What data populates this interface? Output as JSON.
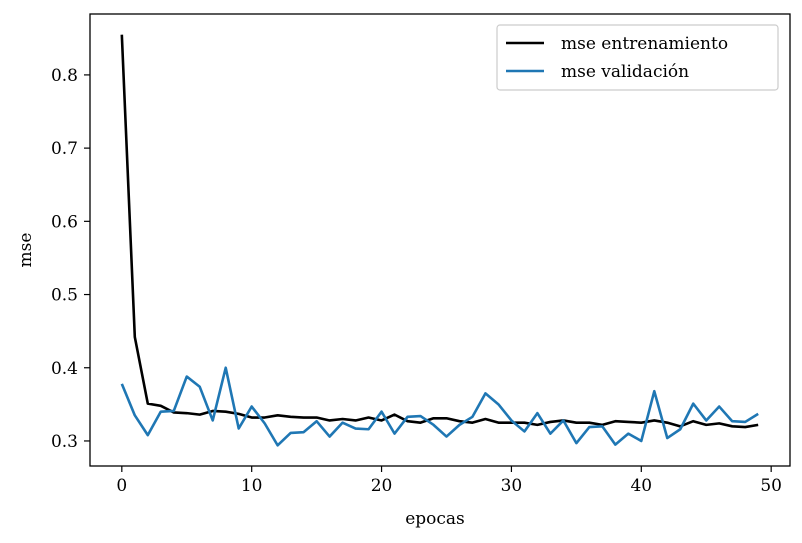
{
  "chart_data": {
    "type": "line",
    "title": "",
    "xlabel": "epocas",
    "ylabel": "mse",
    "xlim": [
      -2.45,
      51.45
    ],
    "ylim": [
      0.2658,
      0.8832
    ],
    "xticks": [
      0,
      10,
      20,
      30,
      40,
      50
    ],
    "yticks": [
      0.3,
      0.4,
      0.5,
      0.6,
      0.7,
      0.8
    ],
    "grid": false,
    "legend_position": "top-right",
    "series": [
      {
        "name": "mse entrenamiento",
        "color": "#000000",
        "x": [
          0,
          1,
          2,
          3,
          4,
          5,
          6,
          7,
          8,
          9,
          10,
          11,
          12,
          13,
          14,
          15,
          16,
          17,
          18,
          19,
          20,
          21,
          22,
          23,
          24,
          25,
          26,
          27,
          28,
          29,
          30,
          31,
          32,
          33,
          34,
          35,
          36,
          37,
          38,
          39,
          40,
          41,
          42,
          43,
          44,
          45,
          46,
          47,
          48,
          49
        ],
        "y": [
          0.855,
          0.442,
          0.351,
          0.348,
          0.339,
          0.338,
          0.336,
          0.341,
          0.34,
          0.337,
          0.332,
          0.332,
          0.335,
          0.333,
          0.332,
          0.332,
          0.328,
          0.33,
          0.328,
          0.332,
          0.328,
          0.336,
          0.327,
          0.325,
          0.331,
          0.331,
          0.327,
          0.325,
          0.33,
          0.325,
          0.325,
          0.325,
          0.322,
          0.326,
          0.328,
          0.325,
          0.325,
          0.322,
          0.327,
          0.326,
          0.325,
          0.328,
          0.325,
          0.32,
          0.327,
          0.322,
          0.324,
          0.32,
          0.319,
          0.322
        ]
      },
      {
        "name": "mse validación",
        "color": "#1f77b4",
        "x": [
          0,
          1,
          2,
          3,
          4,
          5,
          6,
          7,
          8,
          9,
          10,
          11,
          12,
          13,
          14,
          15,
          16,
          17,
          18,
          19,
          20,
          21,
          22,
          23,
          24,
          25,
          26,
          27,
          28,
          29,
          30,
          31,
          32,
          33,
          34,
          35,
          36,
          37,
          38,
          39,
          40,
          41,
          42,
          43,
          44,
          45,
          46,
          47,
          48,
          49
        ],
        "y": [
          0.378,
          0.335,
          0.308,
          0.34,
          0.341,
          0.388,
          0.374,
          0.328,
          0.4,
          0.317,
          0.347,
          0.324,
          0.294,
          0.311,
          0.312,
          0.327,
          0.306,
          0.325,
          0.317,
          0.316,
          0.34,
          0.31,
          0.333,
          0.334,
          0.322,
          0.306,
          0.322,
          0.333,
          0.365,
          0.35,
          0.328,
          0.313,
          0.338,
          0.31,
          0.328,
          0.297,
          0.319,
          0.32,
          0.295,
          0.31,
          0.3,
          0.368,
          0.304,
          0.316,
          0.351,
          0.328,
          0.347,
          0.327,
          0.326,
          0.337
        ]
      }
    ]
  }
}
